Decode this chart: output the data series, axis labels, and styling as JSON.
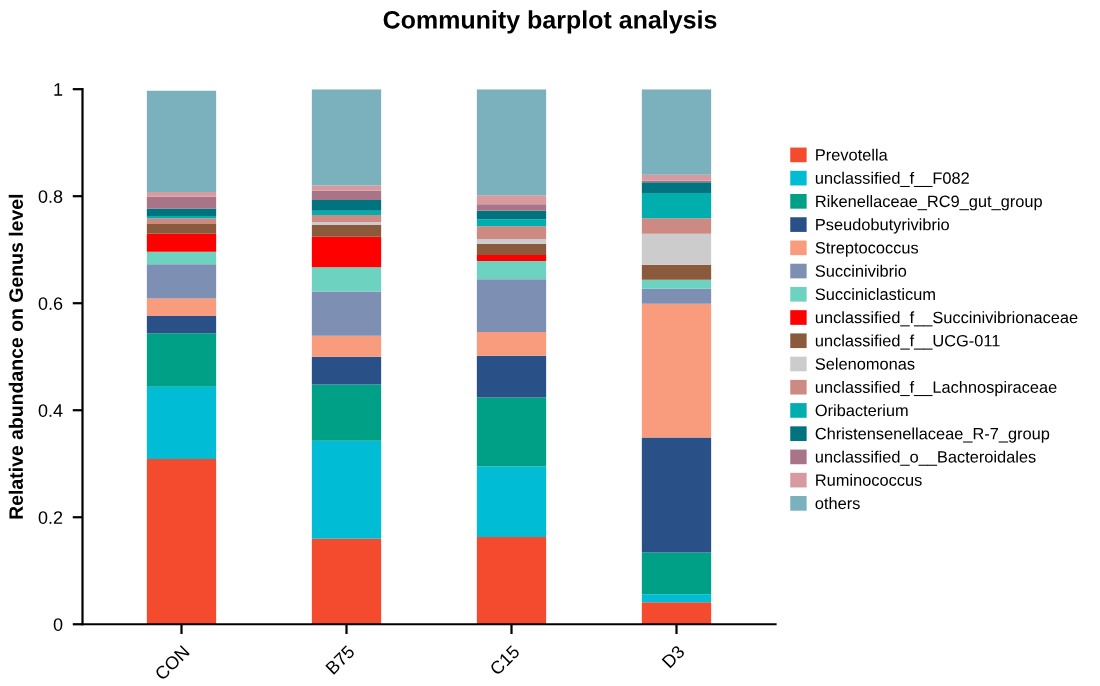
{
  "chart_data": {
    "type": "bar",
    "title": "Community barplot analysis",
    "ylabel": "Relative abundance on Genus level",
    "categories": [
      "CON",
      "B75",
      "C15",
      "D3"
    ],
    "stacked": true,
    "ylim": [
      0,
      1
    ],
    "yticks": [
      0,
      0.2,
      0.4,
      0.6,
      0.8,
      1
    ],
    "grid": false,
    "legend": "right",
    "series": [
      {
        "name": "Prevotella",
        "color": "#f44b2f",
        "values": [
          0.309,
          0.16,
          0.163,
          0.041
        ]
      },
      {
        "name": "unclassified_f__F082",
        "color": "#00bcd4",
        "values": [
          0.135,
          0.183,
          0.132,
          0.015
        ]
      },
      {
        "name": "Rikenellaceae_RC9_gut_group",
        "color": "#00a087",
        "values": [
          0.1,
          0.105,
          0.129,
          0.078
        ]
      },
      {
        "name": "Pseudobutyrivibrio",
        "color": "#2a5088",
        "values": [
          0.032,
          0.052,
          0.078,
          0.215
        ]
      },
      {
        "name": "Streptococcus",
        "color": "#f99b7d",
        "values": [
          0.033,
          0.039,
          0.044,
          0.25
        ]
      },
      {
        "name": "Succinivibrio",
        "color": "#7e8fb4",
        "values": [
          0.064,
          0.083,
          0.099,
          0.028
        ]
      },
      {
        "name": "Succiniclasticum",
        "color": "#6dd3c0",
        "values": [
          0.023,
          0.045,
          0.034,
          0.017
        ]
      },
      {
        "name": "unclassified_f__Succinivibrionaceae",
        "color": "#ff0000",
        "values": [
          0.034,
          0.057,
          0.011,
          0.0
        ]
      },
      {
        "name": "unclassified_f__UCG-011",
        "color": "#8b5a3c",
        "values": [
          0.018,
          0.022,
          0.021,
          0.028
        ]
      },
      {
        "name": "Selenomonas",
        "color": "#cccccc",
        "values": [
          null,
          0.006,
          0.009,
          0.058
        ]
      },
      {
        "name": "unclassified_f__Lachnospiraceae",
        "color": "#cd8a82",
        "values": [
          0.011,
          0.013,
          0.024,
          0.029
        ]
      },
      {
        "name": "Oribacterium",
        "color": "#00aeae",
        "values": [
          0.004,
          0.008,
          0.013,
          0.047
        ]
      },
      {
        "name": "Christensenellaceae_R-7_group",
        "color": "#00737f",
        "values": [
          0.014,
          0.02,
          0.016,
          0.02
        ]
      },
      {
        "name": "unclassified_o__Bacteroidales",
        "color": "#a87588",
        "values": [
          0.022,
          0.017,
          0.012,
          0.003
        ]
      },
      {
        "name": "Ruminococcus",
        "color": "#d79a9f",
        "values": [
          0.009,
          0.01,
          0.017,
          0.011
        ]
      },
      {
        "name": "others",
        "color": "#7ab1bd",
        "values": [
          0.189,
          0.18,
          0.198,
          0.16
        ]
      }
    ]
  }
}
